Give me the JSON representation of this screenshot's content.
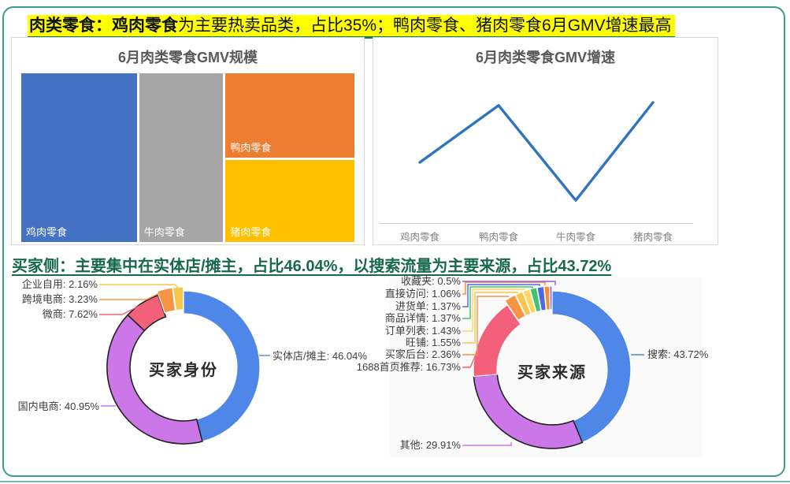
{
  "page": {
    "frame_color": "#3E9C8C"
  },
  "headline1": {
    "bold_part": "肉类零食：鸡肉零食",
    "rest": "为主要热卖品类，占比35%；鸭肉零食、猪肉零食6月GMV增速最高",
    "highlight_bg": "#FFFF00",
    "underline_color": "#1D7A4F"
  },
  "headline2": {
    "text": "买家侧：主要集中在实体店/摊主，占比46.04%，以搜索流量为主要来源，占比43.72%",
    "color": "#17684C"
  },
  "chart_data": [
    {
      "id": "gmv-scale-treemap",
      "type": "treemap",
      "title": "6月肉类零食GMV规模",
      "items": [
        {
          "label": "鸡肉零食",
          "share_pct": 35,
          "color": "#4472C4"
        },
        {
          "label": "牛肉零食",
          "share_pct": 25,
          "color": "#A6A6A6"
        },
        {
          "label": "鸭肉零食",
          "share_pct": 20,
          "color": "#ED7D31"
        },
        {
          "label": "猪肉零食",
          "share_pct": 20,
          "color": "#FFC000"
        }
      ],
      "label_color": "#ffffff"
    },
    {
      "id": "gmv-growth-line",
      "type": "line",
      "title": "6月肉类零食GMV增速",
      "categories": [
        "鸡肉零食",
        "鸭肉零食",
        "牛肉零食",
        "猪肉零食"
      ],
      "values": [
        56,
        95,
        30,
        97
      ],
      "note": "y axis unlabeled in source; values are relative growth index estimated from line height",
      "ylim": [
        0,
        100
      ],
      "line_color": "#2E74C0",
      "grid": false,
      "legend": false
    },
    {
      "id": "buyer-identity-donut",
      "type": "pie",
      "center_label": "买家身份",
      "slices": [
        {
          "label": "实体店/摊主",
          "value": 46.04,
          "color": "#4E87E8"
        },
        {
          "label": "国内电商",
          "value": 40.95,
          "color": "#CC77E8",
          "outlined": true
        },
        {
          "label": "微商",
          "value": 7.62,
          "color": "#F2607A",
          "outlined": true
        },
        {
          "label": "跨境电商",
          "value": 3.23,
          "color": "#F79444"
        },
        {
          "label": "企业自用",
          "value": 2.16,
          "color": "#F7C64B"
        }
      ]
    },
    {
      "id": "buyer-source-donut",
      "type": "pie",
      "center_label": "买家来源",
      "slices": [
        {
          "label": "搜索",
          "value": 43.72,
          "color": "#4E87E8"
        },
        {
          "label": "其他",
          "value": 29.91,
          "color": "#CC77E8",
          "outlined": true
        },
        {
          "label": "1688首页推荐",
          "value": 16.73,
          "color": "#F2607A"
        },
        {
          "label": "买家后台",
          "value": 2.36,
          "color": "#F79444"
        },
        {
          "label": "旺铺",
          "value": 1.55,
          "color": "#F7C64B"
        },
        {
          "label": "订单列表",
          "value": 1.43,
          "color": "#FFD666"
        },
        {
          "label": "商品详情",
          "value": 1.37,
          "color": "#3FC46E"
        },
        {
          "label": "进货单",
          "value": 1.37,
          "color": "#4A6CE0"
        },
        {
          "label": "直接访问",
          "value": 1.06,
          "color": "#FA8C35"
        },
        {
          "label": "收藏夹",
          "value": 0.5,
          "color": "#9B59D0"
        }
      ]
    }
  ]
}
